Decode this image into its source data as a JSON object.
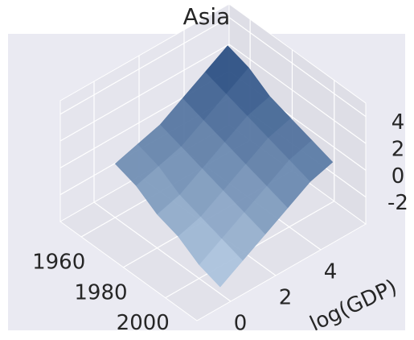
{
  "chart_data": {
    "type": "surface",
    "title": "Asia",
    "ylabel": "log(GDP)",
    "colormap": "Blues",
    "x": [
      1960,
      1970,
      1980,
      1990,
      2000,
      2010
    ],
    "y": [
      0,
      1,
      2,
      3,
      4,
      5
    ],
    "z": [
      [
        0,
        0.5,
        1,
        2,
        3,
        4
      ],
      [
        -0.5,
        0,
        0.5,
        1.5,
        2.5,
        3.5
      ],
      [
        -1.5,
        -1,
        0,
        1,
        2,
        2.5
      ],
      [
        -2,
        -1.5,
        -0.5,
        0.5,
        1.5,
        2
      ],
      [
        -3,
        -2,
        -1,
        0,
        1,
        1.5
      ],
      [
        -3.5,
        -2.5,
        -1.5,
        -0.5,
        0.5,
        1
      ]
    ],
    "xlim": [
      1950,
      2015
    ],
    "ylim": [
      -1.5,
      6
    ],
    "zlim": [
      -4,
      5
    ],
    "xticks": [
      1960,
      1980,
      2000
    ],
    "yticks": [
      0,
      2,
      4
    ],
    "zticks": [
      -2,
      0,
      2,
      4
    ],
    "grid": true
  }
}
